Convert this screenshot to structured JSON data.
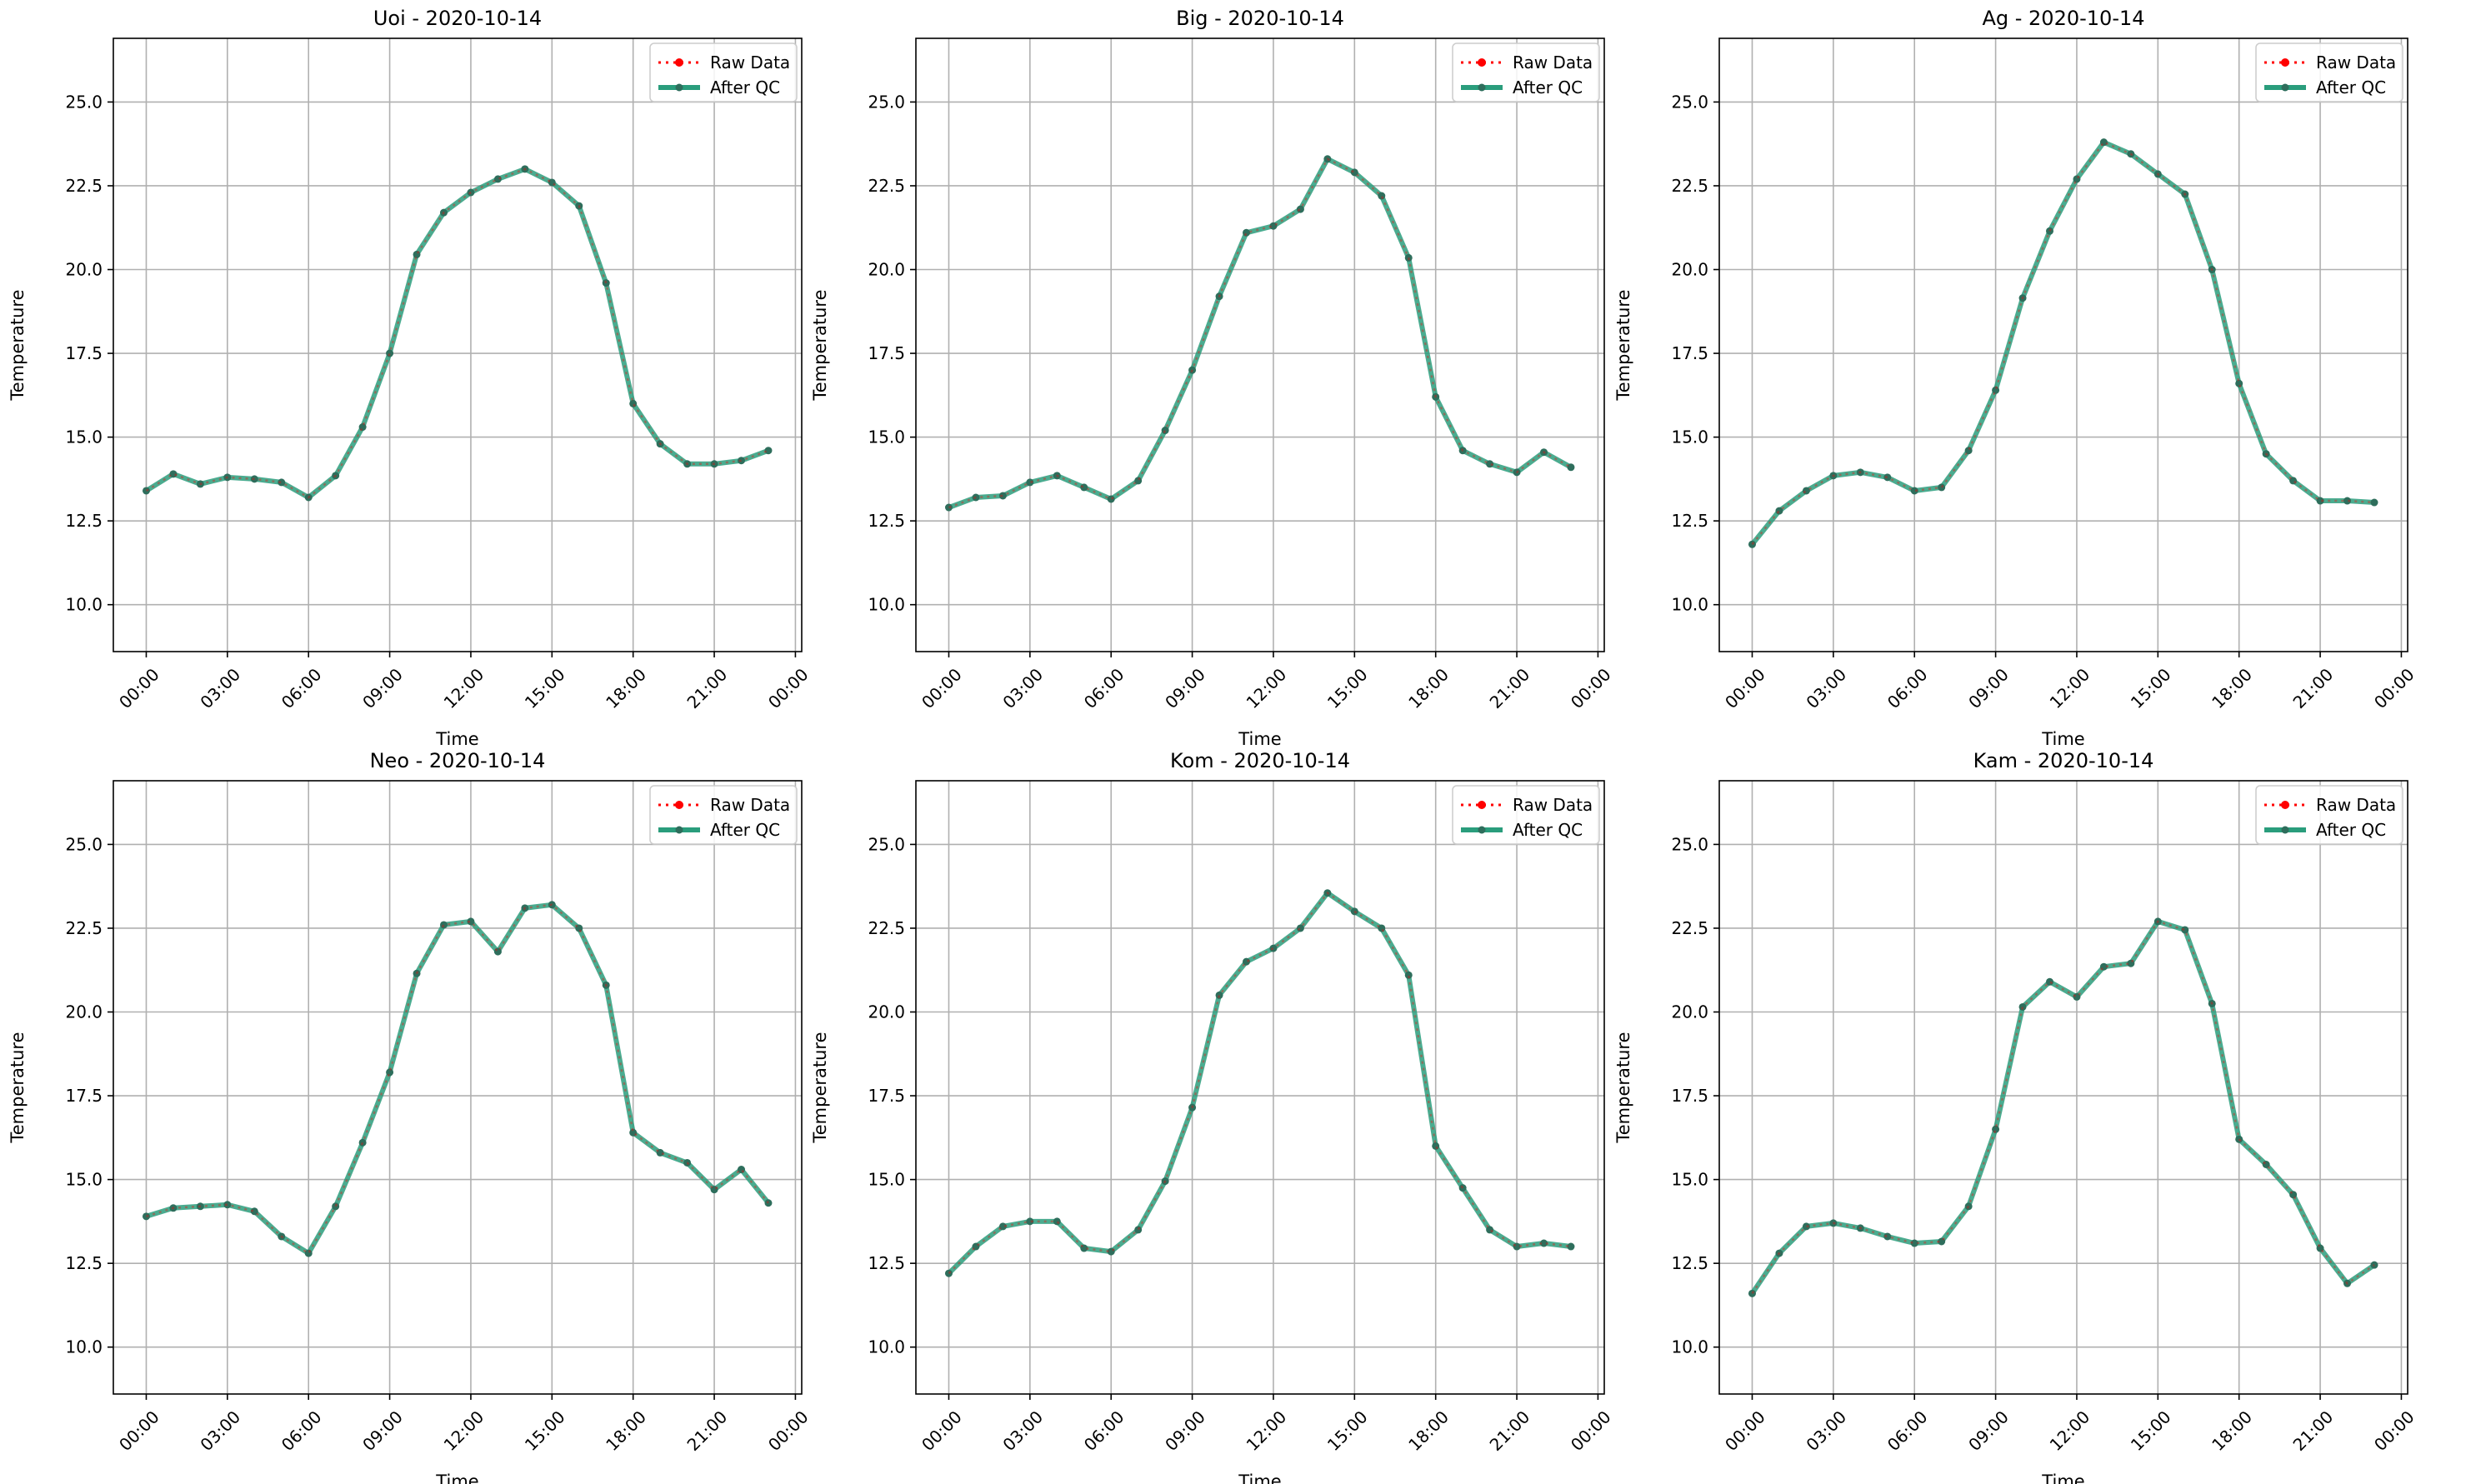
{
  "legend": {
    "raw_label": "Raw Data",
    "qc_label": "After QC"
  },
  "colors": {
    "raw": "#ff0000",
    "qc": "#2a9d7c",
    "marker": "#2e6e5c",
    "grid": "#b0b0b0"
  },
  "chart_data": [
    {
      "type": "line",
      "title": "Uoi - 2020-10-14",
      "xlabel": "Time",
      "ylabel": "Temperature",
      "xticks": [
        "00:00",
        "03:00",
        "06:00",
        "09:00",
        "12:00",
        "15:00",
        "18:00",
        "21:00",
        "00:00"
      ],
      "yticks": [
        "10.0",
        "12.5",
        "15.0",
        "17.5",
        "20.0",
        "22.5",
        "25.0"
      ],
      "ylim": [
        8.6,
        26.9
      ],
      "xlim": [
        "2020-10-14 -01:13",
        "2020-10-15 00:14"
      ],
      "grid": true,
      "legend_position": "top-right",
      "x": [
        "00:00",
        "01:00",
        "02:00",
        "03:00",
        "04:00",
        "05:00",
        "06:00",
        "07:00",
        "08:00",
        "09:00",
        "10:00",
        "11:00",
        "12:00",
        "13:00",
        "14:00",
        "15:00",
        "16:00",
        "17:00",
        "18:00",
        "19:00",
        "20:00",
        "21:00",
        "22:00",
        "23:00"
      ],
      "series": [
        {
          "name": "Raw Data",
          "values": [
            13.4,
            13.9,
            13.6,
            13.8,
            13.75,
            13.65,
            13.2,
            13.85,
            15.3,
            17.5,
            20.45,
            21.7,
            22.3,
            22.7,
            23.0,
            22.6,
            21.9,
            19.6,
            16.0,
            14.8,
            14.2,
            14.2,
            14.3,
            14.6
          ]
        },
        {
          "name": "After QC",
          "values": [
            13.4,
            13.9,
            13.6,
            13.8,
            13.75,
            13.65,
            13.2,
            13.85,
            15.3,
            17.5,
            20.45,
            21.7,
            22.3,
            22.7,
            23.0,
            22.6,
            21.9,
            19.6,
            16.0,
            14.8,
            14.2,
            14.2,
            14.3,
            14.6
          ]
        }
      ]
    },
    {
      "type": "line",
      "title": "Big - 2020-10-14",
      "xlabel": "Time",
      "ylabel": "Temperature",
      "xticks": [
        "00:00",
        "03:00",
        "06:00",
        "09:00",
        "12:00",
        "15:00",
        "18:00",
        "21:00",
        "00:00"
      ],
      "yticks": [
        "10.0",
        "12.5",
        "15.0",
        "17.5",
        "20.0",
        "22.5",
        "25.0"
      ],
      "ylim": [
        8.6,
        26.9
      ],
      "xlim": [
        "2020-10-14 -01:13",
        "2020-10-15 00:14"
      ],
      "grid": true,
      "legend_position": "top-right",
      "x": [
        "00:00",
        "01:00",
        "02:00",
        "03:00",
        "04:00",
        "05:00",
        "06:00",
        "07:00",
        "08:00",
        "09:00",
        "10:00",
        "11:00",
        "12:00",
        "13:00",
        "14:00",
        "15:00",
        "16:00",
        "17:00",
        "18:00",
        "19:00",
        "20:00",
        "21:00",
        "22:00",
        "23:00"
      ],
      "series": [
        {
          "name": "Raw Data",
          "values": [
            12.9,
            13.2,
            13.25,
            13.65,
            13.85,
            13.5,
            13.15,
            13.7,
            15.2,
            17.0,
            19.2,
            21.1,
            21.3,
            21.8,
            23.3,
            22.9,
            22.2,
            20.35,
            16.2,
            14.6,
            14.2,
            13.95,
            14.55,
            14.1
          ]
        },
        {
          "name": "After QC",
          "values": [
            12.9,
            13.2,
            13.25,
            13.65,
            13.85,
            13.5,
            13.15,
            13.7,
            15.2,
            17.0,
            19.2,
            21.1,
            21.3,
            21.8,
            23.3,
            22.9,
            22.2,
            20.35,
            16.2,
            14.6,
            14.2,
            13.95,
            14.55,
            14.1
          ]
        }
      ]
    },
    {
      "type": "line",
      "title": "Ag - 2020-10-14",
      "xlabel": "Time",
      "ylabel": "Temperature",
      "xticks": [
        "00:00",
        "03:00",
        "06:00",
        "09:00",
        "12:00",
        "15:00",
        "18:00",
        "21:00",
        "00:00"
      ],
      "yticks": [
        "10.0",
        "12.5",
        "15.0",
        "17.5",
        "20.0",
        "22.5",
        "25.0"
      ],
      "ylim": [
        8.6,
        26.9
      ],
      "xlim": [
        "2020-10-14 -01:13",
        "2020-10-15 00:14"
      ],
      "grid": true,
      "legend_position": "top-right",
      "x": [
        "00:00",
        "01:00",
        "02:00",
        "03:00",
        "04:00",
        "05:00",
        "06:00",
        "07:00",
        "08:00",
        "09:00",
        "10:00",
        "11:00",
        "12:00",
        "13:00",
        "14:00",
        "15:00",
        "16:00",
        "17:00",
        "18:00",
        "19:00",
        "20:00",
        "21:00",
        "22:00",
        "23:00"
      ],
      "series": [
        {
          "name": "Raw Data",
          "values": [
            11.8,
            12.8,
            13.4,
            13.85,
            13.95,
            13.8,
            13.4,
            13.5,
            14.6,
            16.4,
            19.15,
            21.15,
            22.7,
            23.8,
            23.45,
            22.85,
            22.25,
            20.0,
            16.6,
            14.5,
            13.7,
            13.1,
            13.1,
            13.05
          ]
        },
        {
          "name": "After QC",
          "values": [
            11.8,
            12.8,
            13.4,
            13.85,
            13.95,
            13.8,
            13.4,
            13.5,
            14.6,
            16.4,
            19.15,
            21.15,
            22.7,
            23.8,
            23.45,
            22.85,
            22.25,
            20.0,
            16.6,
            14.5,
            13.7,
            13.1,
            13.1,
            13.05
          ]
        }
      ]
    },
    {
      "type": "line",
      "title": "Neo - 2020-10-14",
      "xlabel": "Time",
      "ylabel": "Temperature",
      "xticks": [
        "00:00",
        "03:00",
        "06:00",
        "09:00",
        "12:00",
        "15:00",
        "18:00",
        "21:00",
        "00:00"
      ],
      "yticks": [
        "10.0",
        "12.5",
        "15.0",
        "17.5",
        "20.0",
        "22.5",
        "25.0"
      ],
      "ylim": [
        8.6,
        26.9
      ],
      "xlim": [
        "2020-10-14 -01:13",
        "2020-10-15 00:14"
      ],
      "grid": true,
      "legend_position": "top-right",
      "x": [
        "00:00",
        "01:00",
        "02:00",
        "03:00",
        "04:00",
        "05:00",
        "06:00",
        "07:00",
        "08:00",
        "09:00",
        "10:00",
        "11:00",
        "12:00",
        "13:00",
        "14:00",
        "15:00",
        "16:00",
        "17:00",
        "18:00",
        "19:00",
        "20:00",
        "21:00",
        "22:00",
        "23:00"
      ],
      "series": [
        {
          "name": "Raw Data",
          "values": [
            13.9,
            14.15,
            14.2,
            14.25,
            14.05,
            13.3,
            12.8,
            14.2,
            16.1,
            18.2,
            21.15,
            22.6,
            22.7,
            21.8,
            23.1,
            23.2,
            22.5,
            20.8,
            16.4,
            15.8,
            15.5,
            14.7,
            15.3,
            14.3
          ]
        },
        {
          "name": "After QC",
          "values": [
            13.9,
            14.15,
            14.2,
            14.25,
            14.05,
            13.3,
            12.8,
            14.2,
            16.1,
            18.2,
            21.15,
            22.6,
            22.7,
            21.8,
            23.1,
            23.2,
            22.5,
            20.8,
            16.4,
            15.8,
            15.5,
            14.7,
            15.3,
            14.3
          ]
        }
      ]
    },
    {
      "type": "line",
      "title": "Kom - 2020-10-14",
      "xlabel": "Time",
      "ylabel": "Temperature",
      "xticks": [
        "00:00",
        "03:00",
        "06:00",
        "09:00",
        "12:00",
        "15:00",
        "18:00",
        "21:00",
        "00:00"
      ],
      "yticks": [
        "10.0",
        "12.5",
        "15.0",
        "17.5",
        "20.0",
        "22.5",
        "25.0"
      ],
      "ylim": [
        8.6,
        26.9
      ],
      "xlim": [
        "2020-10-14 -01:13",
        "2020-10-15 00:14"
      ],
      "grid": true,
      "legend_position": "top-right",
      "x": [
        "00:00",
        "01:00",
        "02:00",
        "03:00",
        "04:00",
        "05:00",
        "06:00",
        "07:00",
        "08:00",
        "09:00",
        "10:00",
        "11:00",
        "12:00",
        "13:00",
        "14:00",
        "15:00",
        "16:00",
        "17:00",
        "18:00",
        "19:00",
        "20:00",
        "21:00",
        "22:00",
        "23:00"
      ],
      "series": [
        {
          "name": "Raw Data",
          "values": [
            12.2,
            13.0,
            13.6,
            13.75,
            13.75,
            12.95,
            12.85,
            13.5,
            14.95,
            17.15,
            20.5,
            21.5,
            21.9,
            22.5,
            23.55,
            23.0,
            22.5,
            21.1,
            16.0,
            14.75,
            13.5,
            13.0,
            13.1,
            13.0
          ]
        },
        {
          "name": "After QC",
          "values": [
            12.2,
            13.0,
            13.6,
            13.75,
            13.75,
            12.95,
            12.85,
            13.5,
            14.95,
            17.15,
            20.5,
            21.5,
            21.9,
            22.5,
            23.55,
            23.0,
            22.5,
            21.1,
            16.0,
            14.75,
            13.5,
            13.0,
            13.1,
            13.0
          ]
        }
      ]
    },
    {
      "type": "line",
      "title": "Kam - 2020-10-14",
      "xlabel": "Time",
      "ylabel": "Temperature",
      "xticks": [
        "00:00",
        "03:00",
        "06:00",
        "09:00",
        "12:00",
        "15:00",
        "18:00",
        "21:00",
        "00:00"
      ],
      "yticks": [
        "10.0",
        "12.5",
        "15.0",
        "17.5",
        "20.0",
        "22.5",
        "25.0"
      ],
      "ylim": [
        8.6,
        26.9
      ],
      "xlim": [
        "2020-10-14 -01:13",
        "2020-10-15 00:14"
      ],
      "grid": true,
      "legend_position": "top-right",
      "x": [
        "00:00",
        "01:00",
        "02:00",
        "03:00",
        "04:00",
        "05:00",
        "06:00",
        "07:00",
        "08:00",
        "09:00",
        "10:00",
        "11:00",
        "12:00",
        "13:00",
        "14:00",
        "15:00",
        "16:00",
        "17:00",
        "18:00",
        "19:00",
        "20:00",
        "21:00",
        "22:00",
        "23:00"
      ],
      "series": [
        {
          "name": "Raw Data",
          "values": [
            11.6,
            12.8,
            13.6,
            13.7,
            13.55,
            13.3,
            13.1,
            13.15,
            14.2,
            16.5,
            20.15,
            20.9,
            20.45,
            21.35,
            21.45,
            22.7,
            22.45,
            20.25,
            16.2,
            15.45,
            14.55,
            12.95,
            11.9,
            12.45
          ]
        },
        {
          "name": "After QC",
          "values": [
            11.6,
            12.8,
            13.6,
            13.7,
            13.55,
            13.3,
            13.1,
            13.15,
            14.2,
            16.5,
            20.15,
            20.9,
            20.45,
            21.35,
            21.45,
            22.7,
            22.45,
            20.25,
            16.2,
            15.45,
            14.55,
            12.95,
            11.9,
            12.45
          ]
        }
      ]
    }
  ]
}
